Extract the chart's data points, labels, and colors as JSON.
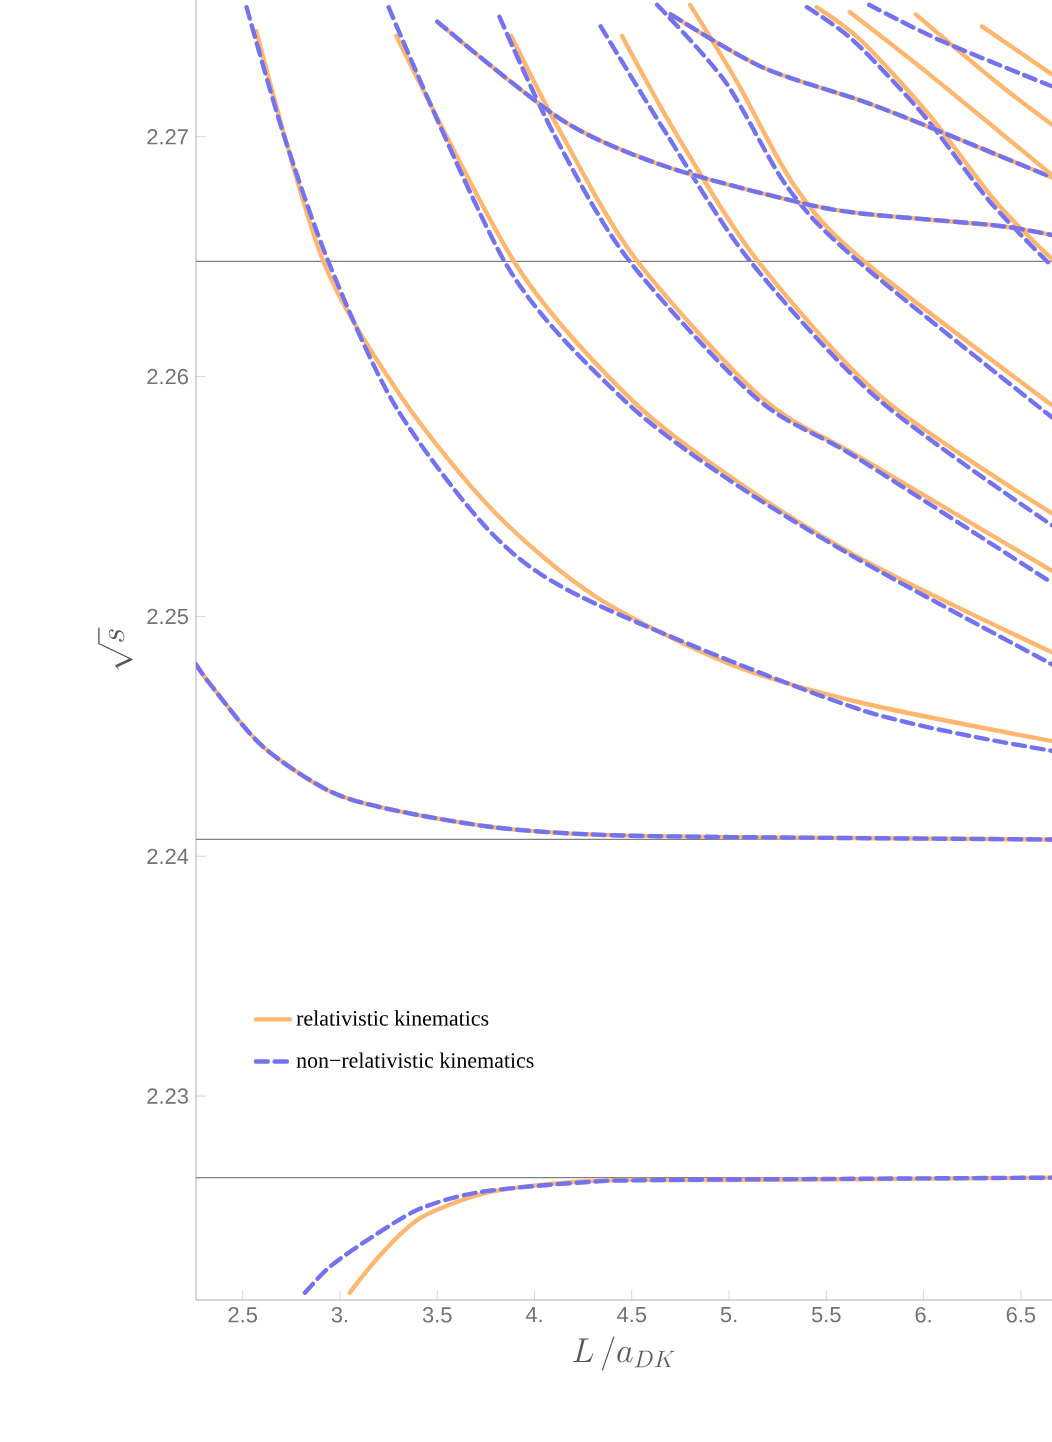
{
  "chart_data": {
    "type": "line",
    "xlabel": "L\\,/a_{DK}",
    "ylabel": "\\sqrt{s}",
    "xlim": [
      2.26,
      6.66
    ],
    "ylim": [
      2.2215,
      2.2757
    ],
    "xticks": [
      2.5,
      {
        "value": 3,
        "label": "3."
      },
      3.5,
      {
        "value": 4,
        "label": "4."
      },
      4.5,
      {
        "value": 5,
        "label": "5."
      },
      5.5,
      {
        "value": 6,
        "label": "6."
      },
      6.5
    ],
    "yticks": [
      2.23,
      2.24,
      2.25,
      2.26,
      2.27
    ],
    "legend": "bottom left",
    "ref_lines": [
      {
        "axis": "y",
        "value": 2.2648,
        "color": "#808080"
      },
      {
        "axis": "y",
        "value": 2.2407,
        "color": "#808080"
      },
      {
        "axis": "y",
        "value": 2.2266,
        "color": "#808080"
      }
    ],
    "series": [
      {
        "name": "relativistic kinematics",
        "color": "#ffb770",
        "line_style": "solid",
        "x": [
          3.05,
          3.21,
          3.41,
          3.72,
          4.03,
          4.44,
          4.95,
          6.66
        ],
        "values": [
          2.2218,
          2.2234,
          2.2249,
          2.2259,
          2.2263,
          2.2265,
          2.2265,
          2.2266
        ]
      },
      {
        "name": "non−relativistic kinematics",
        "color": "#7373f2",
        "line_style": "dashed",
        "x": [
          2.82,
          2.95,
          3.16,
          3.41,
          3.72,
          4.24,
          4.65,
          6.66
        ],
        "values": [
          2.2218,
          2.2229,
          2.2241,
          2.2253,
          2.226,
          2.2264,
          2.2265,
          2.2266
        ]
      },
      {
        "color": "#ffb770",
        "line_style": "solid",
        "x": [
          2.26,
          2.34,
          2.6,
          2.95,
          3.29,
          3.8,
          4.32,
          5.01,
          6.66
        ],
        "values": [
          2.248,
          2.2471,
          2.2446,
          2.2427,
          2.2419,
          2.2412,
          2.2409,
          2.2408,
          2.2407
        ]
      },
      {
        "color": "#7373f2",
        "line_style": "dashed",
        "x": [
          2.26,
          2.34,
          2.6,
          2.95,
          3.29,
          3.8,
          4.32,
          5.01,
          6.66
        ],
        "values": [
          2.248,
          2.2471,
          2.2446,
          2.2427,
          2.2419,
          2.2412,
          2.2409,
          2.2408,
          2.2407
        ]
      },
      {
        "color": "#ffb770",
        "line_style": "solid",
        "x": [
          2.57,
          2.91,
          3.32,
          3.8,
          4.32,
          5.01,
          5.68,
          6.66
        ],
        "values": [
          2.2744,
          2.2649,
          2.2591,
          2.2543,
          2.2508,
          2.248,
          2.2464,
          2.2448
        ]
      },
      {
        "color": "#7373f2",
        "line_style": "dashed",
        "x": [
          2.52,
          2.71,
          2.95,
          3.29,
          3.8,
          4.32,
          5.68,
          6.66
        ],
        "values": [
          2.2754,
          2.2701,
          2.2646,
          2.2587,
          2.2533,
          2.2505,
          2.2461,
          2.2444
        ]
      },
      {
        "color": "#ffb770",
        "line_style": "solid",
        "x": [
          3.29,
          3.91,
          4.49,
          5.01,
          5.68,
          6.66
        ],
        "values": [
          2.2742,
          2.2646,
          2.2591,
          2.2558,
          2.2524,
          2.2485
        ]
      },
      {
        "color": "#7373f2",
        "line_style": "dashed",
        "x": [
          3.25,
          3.86,
          4.45,
          4.98,
          5.66,
          6.66
        ],
        "values": [
          2.2754,
          2.2646,
          2.2591,
          2.2558,
          2.2524,
          2.248
        ]
      },
      {
        "color": "#ffb770",
        "line_style": "solid",
        "x": [
          3.88,
          4.14,
          4.52,
          5.17,
          5.68,
          6.66
        ],
        "values": [
          2.2742,
          2.2701,
          2.2649,
          2.2591,
          2.2566,
          2.2519
        ]
      },
      {
        "color": "#7373f2",
        "line_style": "dashed",
        "x": [
          3.82,
          4.1,
          4.48,
          5.14,
          5.66,
          6.66
        ],
        "values": [
          2.275,
          2.2701,
          2.2649,
          2.2591,
          2.2566,
          2.2514
        ]
      },
      {
        "color": "#ffb770",
        "line_style": "solid",
        "x": [
          4.45,
          4.73,
          5.14,
          5.79,
          6.66
        ],
        "values": [
          2.2742,
          2.2701,
          2.2649,
          2.2591,
          2.2543
        ]
      },
      {
        "color": "#7373f2",
        "line_style": "dashed",
        "x": [
          4.34,
          4.68,
          5.1,
          5.76,
          6.66
        ],
        "values": [
          2.2746,
          2.2701,
          2.2649,
          2.2591,
          2.2538
        ]
      },
      {
        "color": "#ffb770",
        "line_style": "solid",
        "x": [
          4.8,
          5.04,
          5.34,
          5.68,
          6.66
        ],
        "values": [
          2.2755,
          2.2723,
          2.2679,
          2.2649,
          2.2588
        ]
      },
      {
        "color": "#7373f2",
        "line_style": "dashed",
        "x": [
          4.63,
          4.98,
          5.3,
          5.65,
          6.66
        ],
        "values": [
          2.2755,
          2.2723,
          2.2679,
          2.2649,
          2.2583
        ]
      },
      {
        "color": "#ffb770",
        "line_style": "solid",
        "x": [
          5.45,
          5.68,
          6.03,
          6.37,
          6.66
        ],
        "values": [
          2.2754,
          2.274,
          2.2709,
          2.2673,
          2.2649
        ]
      },
      {
        "color": "#7373f2",
        "line_style": "dashed",
        "x": [
          5.4,
          5.64,
          6.0,
          6.34,
          6.66
        ],
        "values": [
          2.2754,
          2.274,
          2.2709,
          2.2673,
          2.2646
        ]
      },
      {
        "color": "#ffb770",
        "line_style": "solid",
        "x": [
          3.5,
          4.14,
          4.66,
          5.34,
          5.68,
          6.37,
          6.66
        ],
        "values": [
          2.2748,
          2.2707,
          2.2688,
          2.2673,
          2.2668,
          2.2663,
          2.2659
        ]
      },
      {
        "color": "#7373f2",
        "line_style": "dashed",
        "x": [
          3.5,
          4.14,
          4.66,
          5.34,
          5.68,
          6.37,
          6.66
        ],
        "values": [
          2.2748,
          2.2707,
          2.2688,
          2.2673,
          2.2668,
          2.2663,
          2.2659
        ]
      },
      {
        "color": "#ffb770",
        "line_style": "solid",
        "x": [
          4.7,
          5.17,
          5.68,
          6.03,
          6.66
        ],
        "values": [
          2.2751,
          2.2729,
          2.2715,
          2.2704,
          2.2683
        ]
      },
      {
        "color": "#7373f2",
        "line_style": "dashed",
        "x": [
          4.7,
          5.17,
          5.68,
          6.03,
          6.66
        ],
        "values": [
          2.2751,
          2.2729,
          2.2715,
          2.2704,
          2.2683
        ]
      },
      {
        "color": "#ffb770",
        "line_style": "solid",
        "x": [
          5.62,
          6.03,
          6.66
        ],
        "values": [
          2.2752,
          2.2726,
          2.2684
        ]
      },
      {
        "color": "#ffb770",
        "line_style": "solid",
        "x": [
          5.96,
          6.37,
          6.66
        ],
        "values": [
          2.2751,
          2.2723,
          2.2705
        ]
      },
      {
        "color": "#ffb770",
        "line_style": "solid",
        "x": [
          6.3,
          6.66
        ],
        "values": [
          2.2746,
          2.2726
        ]
      },
      {
        "color": "#7373f2",
        "line_style": "dashed",
        "x": [
          5.72,
          6.09,
          6.66
        ],
        "values": [
          2.2755,
          2.274,
          2.2721
        ]
      }
    ]
  }
}
